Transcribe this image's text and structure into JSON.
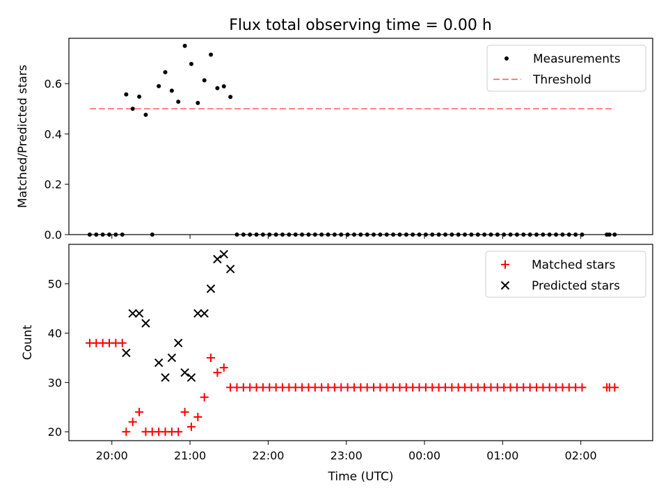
{
  "title": "Flux total observing time = 0.00 h",
  "colors": {
    "measurements": "#000000",
    "threshold": "#ff8080",
    "matched": "#ff0000",
    "predicted": "#000000",
    "axis": "#000000"
  },
  "chart_data": [
    {
      "type": "scatter",
      "ylabel": "Matched/Predicted stars",
      "ylim": [
        0,
        0.78
      ],
      "yticks": [
        "0.0",
        "0.2",
        "0.4",
        "0.6"
      ],
      "ytick_values": [
        0,
        0.2,
        0.4,
        0.6
      ],
      "xlim_hours": [
        19.45,
        26.92
      ],
      "legend_position": "upper right",
      "threshold": {
        "label": "Threshold",
        "value": 0.5,
        "x_from": "19:43",
        "x_to": "02:26"
      },
      "series": [
        {
          "name": "Measurements",
          "marker": "dot",
          "points": [
            [
              "19:43",
              0
            ],
            [
              "19:48",
              0
            ],
            [
              "19:53",
              0
            ],
            [
              "19:58",
              0
            ],
            [
              "20:03",
              0
            ],
            [
              "20:08",
              0
            ],
            [
              "20:11",
              0.557
            ],
            [
              "20:16",
              0.5
            ],
            [
              "20:21",
              0.548
            ],
            [
              "20:26",
              0.476
            ],
            [
              "20:31",
              0
            ],
            [
              "20:36",
              0.59
            ],
            [
              "20:41",
              0.645
            ],
            [
              "20:46",
              0.572
            ],
            [
              "20:51",
              0.528
            ],
            [
              "20:56",
              0.75
            ],
            [
              "21:01",
              0.678
            ],
            [
              "21:06",
              0.523
            ],
            [
              "21:11",
              0.613
            ],
            [
              "21:16",
              0.715
            ],
            [
              "21:21",
              0.582
            ],
            [
              "21:26",
              0.589
            ],
            [
              "21:31",
              0.547
            ],
            [
              "21:36",
              0
            ],
            [
              "21:41",
              0
            ],
            [
              "21:46",
              0
            ],
            [
              "21:51",
              0
            ],
            [
              "21:56",
              0
            ],
            [
              "22:01",
              0
            ],
            [
              "22:06",
              0
            ],
            [
              "22:11",
              0
            ],
            [
              "22:16",
              0
            ],
            [
              "22:21",
              0
            ],
            [
              "22:26",
              0
            ],
            [
              "22:31",
              0
            ],
            [
              "22:36",
              0
            ],
            [
              "22:41",
              0
            ],
            [
              "22:46",
              0
            ],
            [
              "22:51",
              0
            ],
            [
              "22:56",
              0
            ],
            [
              "23:01",
              0
            ],
            [
              "23:06",
              0
            ],
            [
              "23:11",
              0
            ],
            [
              "23:16",
              0
            ],
            [
              "23:21",
              0
            ],
            [
              "23:26",
              0
            ],
            [
              "23:31",
              0
            ],
            [
              "23:36",
              0
            ],
            [
              "23:41",
              0
            ],
            [
              "23:46",
              0
            ],
            [
              "23:51",
              0
            ],
            [
              "23:56",
              0
            ],
            [
              "00:01",
              0
            ],
            [
              "00:06",
              0
            ],
            [
              "00:11",
              0
            ],
            [
              "00:16",
              0
            ],
            [
              "00:21",
              0
            ],
            [
              "00:26",
              0
            ],
            [
              "00:31",
              0
            ],
            [
              "00:36",
              0
            ],
            [
              "00:41",
              0
            ],
            [
              "00:46",
              0
            ],
            [
              "00:51",
              0
            ],
            [
              "00:56",
              0
            ],
            [
              "01:01",
              0
            ],
            [
              "01:06",
              0
            ],
            [
              "01:11",
              0
            ],
            [
              "01:16",
              0
            ],
            [
              "01:21",
              0
            ],
            [
              "01:26",
              0
            ],
            [
              "01:31",
              0
            ],
            [
              "01:36",
              0
            ],
            [
              "01:41",
              0
            ],
            [
              "01:46",
              0
            ],
            [
              "01:51",
              0
            ],
            [
              "01:56",
              0
            ],
            [
              "02:01",
              0
            ],
            [
              "02:20",
              0
            ],
            [
              "02:22",
              0
            ],
            [
              "02:26",
              0
            ]
          ]
        }
      ]
    },
    {
      "type": "scatter",
      "ylabel": "Count",
      "xlabel": "Time (UTC)",
      "ylim": [
        18.2,
        58
      ],
      "yticks": [
        "20",
        "30",
        "40",
        "50"
      ],
      "ytick_values": [
        20,
        30,
        40,
        50
      ],
      "xlim_hours": [
        19.45,
        26.92
      ],
      "xticks": [
        "20:00",
        "21:00",
        "22:00",
        "23:00",
        "00:00",
        "01:00",
        "02:00"
      ],
      "xtick_hours": [
        20,
        21,
        22,
        23,
        24,
        25,
        26
      ],
      "legend_position": "upper right",
      "series": [
        {
          "name": "Matched stars",
          "marker": "plus",
          "points": [
            [
              "19:43",
              38
            ],
            [
              "19:48",
              38
            ],
            [
              "19:53",
              38
            ],
            [
              "19:58",
              38
            ],
            [
              "20:03",
              38
            ],
            [
              "20:08",
              38
            ],
            [
              "20:11",
              20
            ],
            [
              "20:16",
              22
            ],
            [
              "20:21",
              24
            ],
            [
              "20:26",
              20
            ],
            [
              "20:31",
              20
            ],
            [
              "20:36",
              20
            ],
            [
              "20:41",
              20
            ],
            [
              "20:46",
              20
            ],
            [
              "20:51",
              20
            ],
            [
              "20:56",
              24
            ],
            [
              "21:01",
              21
            ],
            [
              "21:06",
              23
            ],
            [
              "21:11",
              27
            ],
            [
              "21:16",
              35
            ],
            [
              "21:21",
              32
            ],
            [
              "21:26",
              33
            ],
            [
              "21:31",
              29
            ],
            [
              "21:36",
              29
            ],
            [
              "21:41",
              29
            ],
            [
              "21:46",
              29
            ],
            [
              "21:51",
              29
            ],
            [
              "21:56",
              29
            ],
            [
              "22:01",
              29
            ],
            [
              "22:06",
              29
            ],
            [
              "22:11",
              29
            ],
            [
              "22:16",
              29
            ],
            [
              "22:21",
              29
            ],
            [
              "22:26",
              29
            ],
            [
              "22:31",
              29
            ],
            [
              "22:36",
              29
            ],
            [
              "22:41",
              29
            ],
            [
              "22:46",
              29
            ],
            [
              "22:51",
              29
            ],
            [
              "22:56",
              29
            ],
            [
              "23:01",
              29
            ],
            [
              "23:06",
              29
            ],
            [
              "23:11",
              29
            ],
            [
              "23:16",
              29
            ],
            [
              "23:21",
              29
            ],
            [
              "23:26",
              29
            ],
            [
              "23:31",
              29
            ],
            [
              "23:36",
              29
            ],
            [
              "23:41",
              29
            ],
            [
              "23:46",
              29
            ],
            [
              "23:51",
              29
            ],
            [
              "23:56",
              29
            ],
            [
              "00:01",
              29
            ],
            [
              "00:06",
              29
            ],
            [
              "00:11",
              29
            ],
            [
              "00:16",
              29
            ],
            [
              "00:21",
              29
            ],
            [
              "00:26",
              29
            ],
            [
              "00:31",
              29
            ],
            [
              "00:36",
              29
            ],
            [
              "00:41",
              29
            ],
            [
              "00:46",
              29
            ],
            [
              "00:51",
              29
            ],
            [
              "00:56",
              29
            ],
            [
              "01:01",
              29
            ],
            [
              "01:06",
              29
            ],
            [
              "01:11",
              29
            ],
            [
              "01:16",
              29
            ],
            [
              "01:21",
              29
            ],
            [
              "01:26",
              29
            ],
            [
              "01:31",
              29
            ],
            [
              "01:36",
              29
            ],
            [
              "01:41",
              29
            ],
            [
              "01:46",
              29
            ],
            [
              "01:51",
              29
            ],
            [
              "01:56",
              29
            ],
            [
              "02:01",
              29
            ],
            [
              "02:20",
              29
            ],
            [
              "02:22",
              29
            ],
            [
              "02:26",
              29
            ]
          ]
        },
        {
          "name": "Predicted stars",
          "marker": "x",
          "points": [
            [
              "20:11",
              36
            ],
            [
              "20:16",
              44
            ],
            [
              "20:21",
              44
            ],
            [
              "20:26",
              42
            ],
            [
              "20:36",
              34
            ],
            [
              "20:41",
              31
            ],
            [
              "20:46",
              35
            ],
            [
              "20:51",
              38
            ],
            [
              "20:56",
              32
            ],
            [
              "21:01",
              31
            ],
            [
              "21:06",
              44
            ],
            [
              "21:11",
              44
            ],
            [
              "21:16",
              49
            ],
            [
              "21:21",
              55
            ],
            [
              "21:26",
              56
            ],
            [
              "21:31",
              53
            ]
          ]
        }
      ]
    }
  ]
}
